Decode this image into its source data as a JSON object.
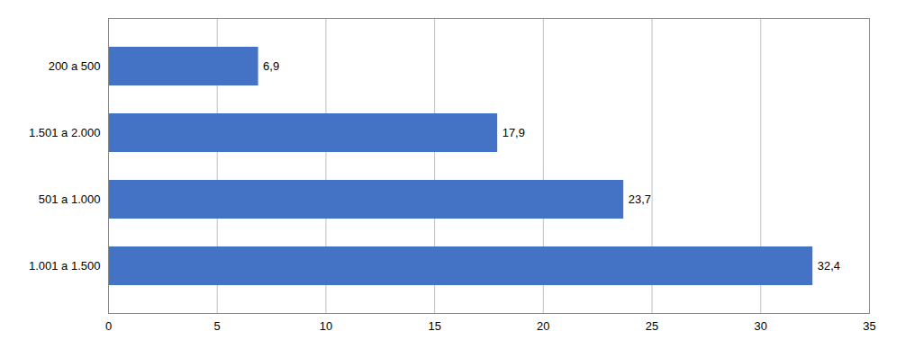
{
  "chart_data": {
    "type": "bar",
    "orientation": "horizontal",
    "categories": [
      "1.001 a 1.500",
      "501 a 1.000",
      "1.501 a 2.000",
      "200 a 500"
    ],
    "values": [
      32.4,
      23.7,
      17.9,
      6.9
    ],
    "value_labels": [
      "32,4",
      "23,7",
      "17,9",
      "6,9"
    ],
    "data_labels": true,
    "color": "#4472C4",
    "xlim": [
      0,
      35
    ],
    "xticks": [
      0,
      5,
      10,
      15,
      20,
      25,
      30,
      35
    ],
    "grid": true
  }
}
